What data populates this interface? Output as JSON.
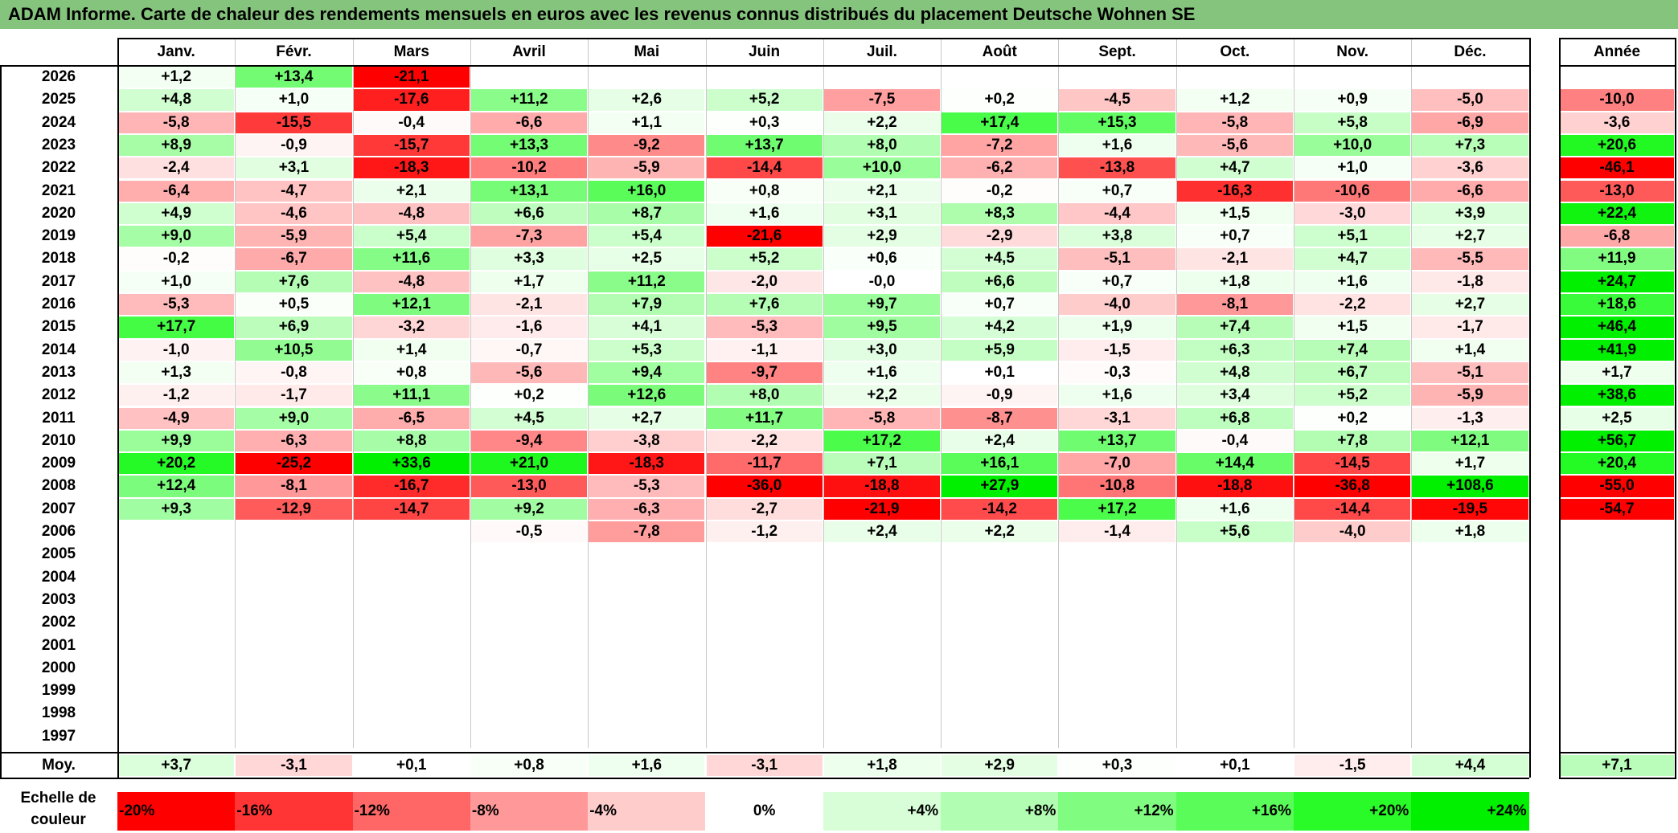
{
  "title": "ADAM Informe. Carte de chaleur des rendements mensuels en euros avec les revenus connus distribués du placement Deutsche Wohnen SE",
  "months": [
    "Janv.",
    "Févr.",
    "Mars",
    "Avril",
    "Mai",
    "Juin",
    "Juil.",
    "Août",
    "Sept.",
    "Oct.",
    "Nov.",
    "Déc."
  ],
  "year_header": "Année",
  "avg_label": "Moy.",
  "scale_label": "Echelle de couleur",
  "chart_data": {
    "type": "heatmap",
    "title": "ADAM Informe. Carte de chaleur des rendements mensuels en euros avec les revenus connus distribués du placement Deutsche Wohnen SE",
    "columns": [
      "Janv.",
      "Févr.",
      "Mars",
      "Avril",
      "Mai",
      "Juin",
      "Juil.",
      "Août",
      "Sept.",
      "Oct.",
      "Nov.",
      "Déc."
    ],
    "rows": [
      {
        "year": "2026",
        "values": [
          "+1,2",
          "+13,4",
          "-21,1",
          "",
          "",
          "",
          "",
          "",
          "",
          "",
          "",
          ""
        ],
        "annual": ""
      },
      {
        "year": "2025",
        "values": [
          "+4,8",
          "+1,0",
          "-17,6",
          "+11,2",
          "+2,6",
          "+5,2",
          "-7,5",
          "+0,2",
          "-4,5",
          "+1,2",
          "+0,9",
          "-5,0"
        ],
        "annual": "-10,0"
      },
      {
        "year": "2024",
        "values": [
          "-5,8",
          "-15,5",
          "-0,4",
          "-6,6",
          "+1,1",
          "+0,3",
          "+2,2",
          "+17,4",
          "+15,3",
          "-5,8",
          "+5,8",
          "-6,9"
        ],
        "annual": "-3,6"
      },
      {
        "year": "2023",
        "values": [
          "+8,9",
          "-0,9",
          "-15,7",
          "+13,3",
          "-9,2",
          "+13,7",
          "+8,0",
          "-7,2",
          "+1,6",
          "-5,6",
          "+10,0",
          "+7,3"
        ],
        "annual": "+20,6"
      },
      {
        "year": "2022",
        "values": [
          "-2,4",
          "+3,1",
          "-18,3",
          "-10,2",
          "-5,9",
          "-14,4",
          "+10,0",
          "-6,2",
          "-13,8",
          "+4,7",
          "+1,0",
          "-3,6"
        ],
        "annual": "-46,1"
      },
      {
        "year": "2021",
        "values": [
          "-6,4",
          "-4,7",
          "+2,1",
          "+13,1",
          "+16,0",
          "+0,8",
          "+2,1",
          "-0,2",
          "+0,7",
          "-16,3",
          "-10,6",
          "-6,6"
        ],
        "annual": "-13,0"
      },
      {
        "year": "2020",
        "values": [
          "+4,9",
          "-4,6",
          "-4,8",
          "+6,6",
          "+8,7",
          "+1,6",
          "+3,1",
          "+8,3",
          "-4,4",
          "+1,5",
          "-3,0",
          "+3,9"
        ],
        "annual": "+22,4"
      },
      {
        "year": "2019",
        "values": [
          "+9,0",
          "-5,9",
          "+5,4",
          "-7,3",
          "+5,4",
          "-21,6",
          "+2,9",
          "-2,9",
          "+3,8",
          "+0,7",
          "+5,1",
          "+2,7"
        ],
        "annual": "-6,8"
      },
      {
        "year": "2018",
        "values": [
          "-0,2",
          "-6,7",
          "+11,6",
          "+3,3",
          "+2,5",
          "+5,2",
          "+0,6",
          "+4,5",
          "-5,1",
          "-2,1",
          "+4,7",
          "-5,5"
        ],
        "annual": "+11,9"
      },
      {
        "year": "2017",
        "values": [
          "+1,0",
          "+7,6",
          "-4,8",
          "+1,7",
          "+11,2",
          "-2,0",
          "-0,0",
          "+6,6",
          "+0,7",
          "+1,8",
          "+1,6",
          "-1,8"
        ],
        "annual": "+24,7"
      },
      {
        "year": "2016",
        "values": [
          "-5,3",
          "+0,5",
          "+12,1",
          "-2,1",
          "+7,9",
          "+7,6",
          "+9,7",
          "+0,7",
          "-4,0",
          "-8,1",
          "-2,2",
          "+2,7"
        ],
        "annual": "+18,6"
      },
      {
        "year": "2015",
        "values": [
          "+17,7",
          "+6,9",
          "-3,2",
          "-1,6",
          "+4,1",
          "-5,3",
          "+9,5",
          "+4,2",
          "+1,9",
          "+7,4",
          "+1,5",
          "-1,7"
        ],
        "annual": "+46,4"
      },
      {
        "year": "2014",
        "values": [
          "-1,0",
          "+10,5",
          "+1,4",
          "-0,7",
          "+5,3",
          "-1,1",
          "+3,0",
          "+5,9",
          "-1,5",
          "+6,3",
          "+7,4",
          "+1,4"
        ],
        "annual": "+41,9"
      },
      {
        "year": "2013",
        "values": [
          "+1,3",
          "-0,8",
          "+0,8",
          "-5,6",
          "+9,4",
          "-9,7",
          "+1,6",
          "+0,1",
          "-0,3",
          "+4,8",
          "+6,7",
          "-5,1"
        ],
        "annual": "+1,7"
      },
      {
        "year": "2012",
        "values": [
          "-1,2",
          "-1,7",
          "+11,1",
          "+0,2",
          "+12,6",
          "+8,0",
          "+2,2",
          "-0,9",
          "+1,6",
          "+3,4",
          "+5,2",
          "-5,9"
        ],
        "annual": "+38,6"
      },
      {
        "year": "2011",
        "values": [
          "-4,9",
          "+9,0",
          "-6,5",
          "+4,5",
          "+2,7",
          "+11,7",
          "-5,8",
          "-8,7",
          "-3,1",
          "+6,8",
          "+0,2",
          "-1,3"
        ],
        "annual": "+2,5"
      },
      {
        "year": "2010",
        "values": [
          "+9,9",
          "-6,3",
          "+8,8",
          "-9,4",
          "-3,8",
          "-2,2",
          "+17,2",
          "+2,4",
          "+13,7",
          "-0,4",
          "+7,8",
          "+12,1"
        ],
        "annual": "+56,7"
      },
      {
        "year": "2009",
        "values": [
          "+20,2",
          "-25,2",
          "+33,6",
          "+21,0",
          "-18,3",
          "-11,7",
          "+7,1",
          "+16,1",
          "-7,0",
          "+14,4",
          "-14,5",
          "+1,7"
        ],
        "annual": "+20,4"
      },
      {
        "year": "2008",
        "values": [
          "+12,4",
          "-8,1",
          "-16,7",
          "-13,0",
          "-5,3",
          "-36,0",
          "-18,8",
          "+27,9",
          "-10,8",
          "-18,8",
          "-36,8",
          "+108,6"
        ],
        "annual": "-55,0"
      },
      {
        "year": "2007",
        "values": [
          "+9,3",
          "-12,9",
          "-14,7",
          "+9,2",
          "-6,3",
          "-2,7",
          "-21,9",
          "-14,2",
          "+17,2",
          "+1,6",
          "-14,4",
          "-19,5"
        ],
        "annual": "-54,7"
      },
      {
        "year": "2006",
        "values": [
          "",
          "",
          "",
          "-0,5",
          "-7,8",
          "-1,2",
          "+2,4",
          "+2,2",
          "-1,4",
          "+5,6",
          "-4,0",
          "+1,8"
        ],
        "annual": ""
      },
      {
        "year": "2005",
        "values": [
          "",
          "",
          "",
          "",
          "",
          "",
          "",
          "",
          "",
          "",
          "",
          ""
        ],
        "annual": ""
      },
      {
        "year": "2004",
        "values": [
          "",
          "",
          "",
          "",
          "",
          "",
          "",
          "",
          "",
          "",
          "",
          ""
        ],
        "annual": ""
      },
      {
        "year": "2003",
        "values": [
          "",
          "",
          "",
          "",
          "",
          "",
          "",
          "",
          "",
          "",
          "",
          ""
        ],
        "annual": ""
      },
      {
        "year": "2002",
        "values": [
          "",
          "",
          "",
          "",
          "",
          "",
          "",
          "",
          "",
          "",
          "",
          ""
        ],
        "annual": ""
      },
      {
        "year": "2001",
        "values": [
          "",
          "",
          "",
          "",
          "",
          "",
          "",
          "",
          "",
          "",
          "",
          ""
        ],
        "annual": ""
      },
      {
        "year": "2000",
        "values": [
          "",
          "",
          "",
          "",
          "",
          "",
          "",
          "",
          "",
          "",
          "",
          ""
        ],
        "annual": ""
      },
      {
        "year": "1999",
        "values": [
          "",
          "",
          "",
          "",
          "",
          "",
          "",
          "",
          "",
          "",
          "",
          ""
        ],
        "annual": ""
      },
      {
        "year": "1998",
        "values": [
          "",
          "",
          "",
          "",
          "",
          "",
          "",
          "",
          "",
          "",
          "",
          ""
        ],
        "annual": ""
      },
      {
        "year": "1997",
        "values": [
          "",
          "",
          "",
          "",
          "",
          "",
          "",
          "",
          "",
          "",
          "",
          ""
        ],
        "annual": ""
      }
    ],
    "averages": [
      "+3,7",
      "-3,1",
      "+0,1",
      "+0,8",
      "+1,6",
      "-3,1",
      "+1,8",
      "+2,9",
      "+0,3",
      "+0,1",
      "-1,5",
      "+4,4"
    ],
    "average_annual": "+7,1",
    "color_scale": [
      {
        "label": "-20%",
        "value": -20,
        "color": "#ff0000"
      },
      {
        "label": "-16%",
        "value": -16,
        "color": "#ff3434"
      },
      {
        "label": "-12%",
        "value": -12,
        "color": "#ff6666"
      },
      {
        "label": "-8%",
        "value": -8,
        "color": "#ff9999"
      },
      {
        "label": "-4%",
        "value": -4,
        "color": "#ffcccc"
      },
      {
        "label": "0%",
        "value": 0,
        "color": "#ffffff"
      },
      {
        "label": "+4%",
        "value": 4,
        "color": "#d8fed8"
      },
      {
        "label": "+8%",
        "value": 8,
        "color": "#b1fdb1"
      },
      {
        "label": "+12%",
        "value": 12,
        "color": "#80fc80"
      },
      {
        "label": "+16%",
        "value": 16,
        "color": "#5afc5a"
      },
      {
        "label": "+20%",
        "value": 20,
        "color": "#28fb28"
      },
      {
        "label": "+24%",
        "value": 24,
        "color": "#00f000"
      }
    ]
  }
}
